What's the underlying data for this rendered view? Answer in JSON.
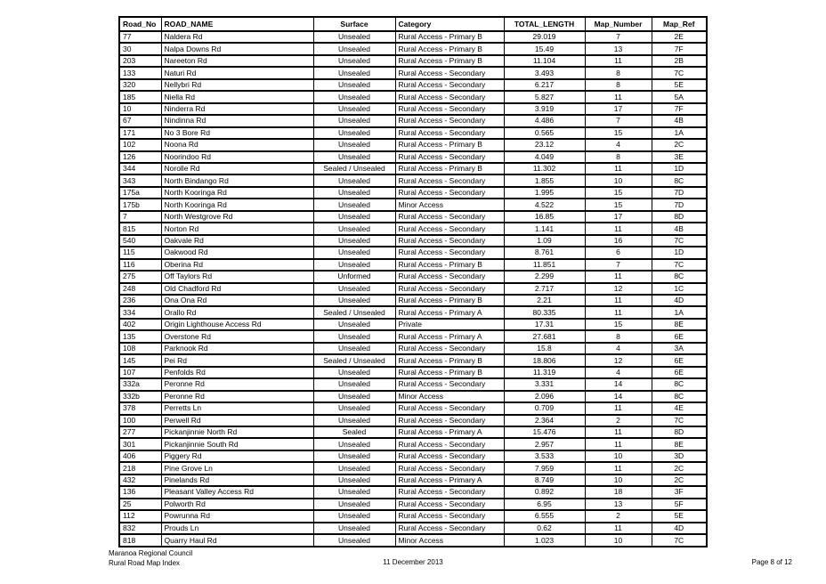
{
  "document": {
    "table": {
      "headers": [
        "Road_No",
        "ROAD_NAME",
        "Surface",
        "Category",
        "TOTAL_LENGTH",
        "Map_Number",
        "Map_Ref"
      ],
      "rows": [
        [
          "77",
          "Naldera Rd",
          "Unsealed",
          "Rural Access - Primary B",
          "29.019",
          "7",
          "2E"
        ],
        [
          "30",
          "Nalpa Downs Rd",
          "Unsealed",
          "Rural Access - Primary B",
          "15.49",
          "13",
          "7F"
        ],
        [
          "203",
          "Nareeton Rd",
          "Unsealed",
          "Rural Access - Primary B",
          "11.104",
          "11",
          "2B"
        ],
        [
          "133",
          "Naturi Rd",
          "Unsealed",
          "Rural Access - Secondary",
          "3.493",
          "8",
          "7C"
        ],
        [
          "320",
          "Nellybri Rd",
          "Unsealed",
          "Rural Access - Secondary",
          "6.217",
          "8",
          "5E"
        ],
        [
          "185",
          "Niella Rd",
          "Unsealed",
          "Rural Access - Secondary",
          "5.827",
          "11",
          "5A"
        ],
        [
          "10",
          "Ninderra Rd",
          "Unsealed",
          "Rural Access - Secondary",
          "3.919",
          "17",
          "7F"
        ],
        [
          "67",
          "Nindinna Rd",
          "Unsealed",
          "Rural Access - Secondary",
          "4.486",
          "7",
          "4B"
        ],
        [
          "171",
          "No 3 Bore Rd",
          "Unsealed",
          "Rural Access - Secondary",
          "0.565",
          "15",
          "1A"
        ],
        [
          "102",
          "Noona Rd",
          "Unsealed",
          "Rural Access - Primary B",
          "23.12",
          "4",
          "2C"
        ],
        [
          "126",
          "Noorindoo Rd",
          "Unsealed",
          "Rural Access - Secondary",
          "4.049",
          "8",
          "3E"
        ],
        [
          "344",
          "Norolle Rd",
          "Sealed / Unsealed",
          "Rural Access - Primary B",
          "11.302",
          "11",
          "1D"
        ],
        [
          "343",
          "North Bindango Rd",
          "Unsealed",
          "Rural Access - Secondary",
          "1.855",
          "10",
          "8C"
        ],
        [
          "175a",
          "North Kooringa Rd",
          "Unsealed",
          "Rural Access - Secondary",
          "1.995",
          "15",
          "7D"
        ],
        [
          "175b",
          "North Kooringa Rd",
          "Unsealed",
          "Minor Access",
          "4.522",
          "15",
          "7D"
        ],
        [
          "7",
          "North Westgrove Rd",
          "Unsealed",
          "Rural Access - Secondary",
          "16.85",
          "17",
          "8D"
        ],
        [
          "815",
          "Norton Rd",
          "Unsealed",
          "Rural Access - Secondary",
          "1.141",
          "11",
          "4B"
        ],
        [
          "540",
          "Oakvale Rd",
          "Unsealed",
          "Rural Access - Secondary",
          "1.09",
          "16",
          "7C"
        ],
        [
          "115",
          "Oakwood Rd",
          "Unsealed",
          "Rural Access - Secondary",
          "8.761",
          "6",
          "1D"
        ],
        [
          "116",
          "Oberina Rd",
          "Unsealed",
          "Rural Access - Primary B",
          "11.851",
          "7",
          "7C"
        ],
        [
          "275",
          "Off Taylors Rd",
          "Unformed",
          "Rural Access - Secondary",
          "2.299",
          "11",
          "8C"
        ],
        [
          "248",
          "Old Chadford Rd",
          "Unsealed",
          "Rural Access - Secondary",
          "2.717",
          "12",
          "1C"
        ],
        [
          "236",
          "Ona Ona Rd",
          "Unsealed",
          "Rural Access - Primary B",
          "2.21",
          "11",
          "4D"
        ],
        [
          "334",
          "Orallo Rd",
          "Sealed / Unsealed",
          "Rural Access - Primary A",
          "80.335",
          "11",
          "1A"
        ],
        [
          "402",
          "Origin Lighthouse Access Rd",
          "Unsealed",
          "Private",
          "17.31",
          "15",
          "8E"
        ],
        [
          "135",
          "Overstone Rd",
          "Unsealed",
          "Rural Access - Primary A",
          "27.681",
          "8",
          "6E"
        ],
        [
          "108",
          "Parknook Rd",
          "Unsealed",
          "Rural Access - Secondary",
          "15.8",
          "4",
          "3A"
        ],
        [
          "145",
          "Pei Rd",
          "Sealed / Unsealed",
          "Rural Access - Primary B",
          "18.806",
          "12",
          "6E"
        ],
        [
          "107",
          "Penfolds Rd",
          "Unsealed",
          "Rural Access - Primary B",
          "11.319",
          "4",
          "6E"
        ],
        [
          "332a",
          "Peronne Rd",
          "Unsealed",
          "Rural Access - Secondary",
          "3.331",
          "14",
          "8C"
        ],
        [
          "332b",
          "Peronne Rd",
          "Unsealed",
          "Minor Access",
          "2.096",
          "14",
          "8C"
        ],
        [
          "378",
          "Perretts Ln",
          "Unsealed",
          "Rural Access - Secondary",
          "0.709",
          "11",
          "4E"
        ],
        [
          "100",
          "Perwell Rd",
          "Unsealed",
          "Rural Access - Secondary",
          "2.364",
          "2",
          "7C"
        ],
        [
          "277",
          "Pickanjinnie North Rd",
          "Sealed",
          "Rural Access - Primary A",
          "15.476",
          "11",
          "8D"
        ],
        [
          "301",
          "Pickanjinnie South Rd",
          "Unsealed",
          "Rural Access - Secondary",
          "2.957",
          "11",
          "8E"
        ],
        [
          "406",
          "Piggery Rd",
          "Unsealed",
          "Rural Access - Secondary",
          "3.533",
          "10",
          "3D"
        ],
        [
          "218",
          "Pine Grove Ln",
          "Unsealed",
          "Rural Access - Secondary",
          "7.959",
          "11",
          "2C"
        ],
        [
          "432",
          "Pinelands Rd",
          "Unsealed",
          "Rural Access - Primary A",
          "8.749",
          "10",
          "2C"
        ],
        [
          "136",
          "Pleasant Valley Access Rd",
          "Unsealed",
          "Rural Access - Secondary",
          "0.892",
          "18",
          "3F"
        ],
        [
          "25",
          "Polworth Rd",
          "Unsealed",
          "Rural Access - Secondary",
          "6.95",
          "13",
          "5F"
        ],
        [
          "112",
          "Powrunna Rd",
          "Unsealed",
          "Rural Access - Secondary",
          "6.555",
          "2",
          "5E"
        ],
        [
          "832",
          "Prouds Ln",
          "Unsealed",
          "Rural Access - Secondary",
          "0.62",
          "11",
          "4D"
        ],
        [
          "818",
          "Quarry Haul Rd",
          "Unsealed",
          "Minor Access",
          "1.023",
          "10",
          "7C"
        ]
      ]
    },
    "footer": {
      "org_line1": "Maranoa Regional Council",
      "org_line2": "Rural Road Map Index",
      "date": "11 December 2013",
      "page": "Page 8 of 12"
    }
  }
}
